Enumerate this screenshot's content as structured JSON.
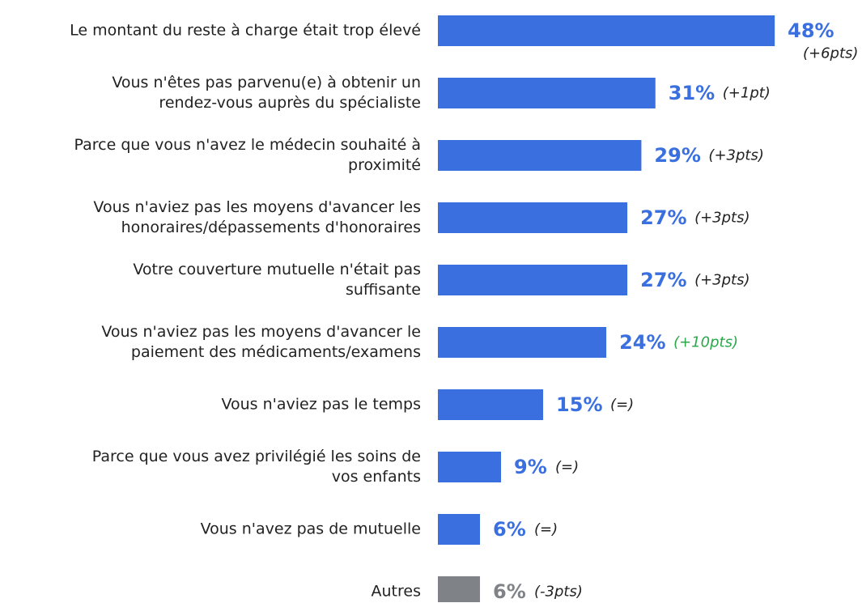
{
  "chart_data": {
    "type": "bar",
    "orientation": "horizontal",
    "categories": [
      "Le montant du reste à charge était trop élevé",
      "Vous n'êtes pas parvenu(e) à obtenir un rendez-vous auprès du spécialiste",
      "Parce que vous n'avez le médecin souhaité à proximité",
      "Vous n'aviez pas les moyens d'avancer les honoraires/dépassements d'honoraires",
      "Votre couverture mutuelle n'était pas suffisante",
      "Vous n'aviez pas les moyens d'avancer le paiement des médicaments/examens",
      "Vous n'aviez pas le temps",
      "Parce que vous avez privilégié les soins de vos enfants",
      "Vous n'avez pas de mutuelle",
      "Autres"
    ],
    "values": [
      48,
      31,
      29,
      27,
      27,
      24,
      15,
      9,
      6,
      6
    ],
    "value_labels": [
      "48%",
      "31%",
      "29%",
      "27%",
      "27%",
      "24%",
      "15%",
      "9%",
      "6%",
      "6%"
    ],
    "colors": [
      "#3a6fdf",
      "#3a6fdf",
      "#3a6fdf",
      "#3a6fdf",
      "#3a6fdf",
      "#3a6fdf",
      "#3a6fdf",
      "#3a6fdf",
      "#3a6fdf",
      "#7f8286"
    ],
    "changes": [
      "(+6pts)",
      "(+1pt)",
      "(+3pts)",
      "(+3pts)",
      "(+3pts)",
      "(+10pts)",
      "(=)",
      "(=)",
      "(=)",
      "(-3pts)"
    ],
    "change_colors": [
      "#222222",
      "#222222",
      "#222222",
      "#222222",
      "#222222",
      "#2aa84a",
      "#222222",
      "#222222",
      "#222222",
      "#222222"
    ]
  }
}
